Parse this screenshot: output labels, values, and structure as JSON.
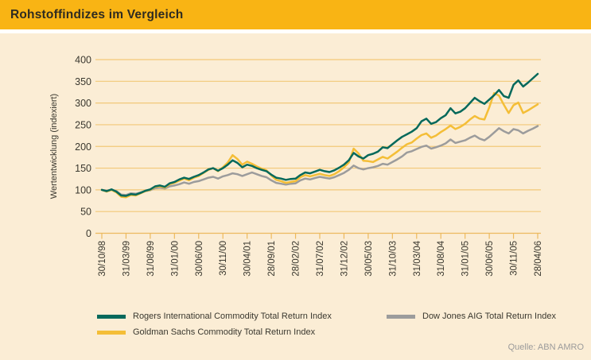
{
  "header": {
    "title": "Rohstoffindizes im Vergleich"
  },
  "source": {
    "label": "Quelle: ABN AMRO"
  },
  "colors": {
    "header_bar": "#f9b414",
    "background": "#fbedd5",
    "gridline": "#f2c878",
    "axis": "#ecb95e",
    "rogers": "#05695b",
    "goldman": "#f4be37",
    "dowjones": "#9c9c9c"
  },
  "chart_data": {
    "type": "line",
    "title": "Rohstoffindizes im Vergleich",
    "xlabel": "",
    "ylabel": "Wertentwicklung (indexiert)",
    "ylim": [
      0,
      400
    ],
    "yticks": [
      0,
      50,
      100,
      150,
      200,
      250,
      300,
      350,
      400
    ],
    "grid": "horizontal",
    "legend_position": "bottom",
    "n_points": 91,
    "x_frequency": "monthly",
    "x_tick_step": 5,
    "x_tick_labels": [
      "30/10/98",
      "31/03/99",
      "31/08/99",
      "31/01/00",
      "30/06/00",
      "30/11/00",
      "30/04/01",
      "28/09/01",
      "28/02/02",
      "31/07/02",
      "31/12/02",
      "30/05/03",
      "31/10/03",
      "31/03/04",
      "31/08/04",
      "31/01/05",
      "30/06/05",
      "30/11/05",
      "28/04/06"
    ],
    "series": [
      {
        "name": "Rogers International Commodity Total Return Index",
        "color": "#05695b",
        "values": [
          100,
          97,
          101,
          96,
          87,
          86,
          90,
          89,
          93,
          98,
          101,
          108,
          110,
          107,
          115,
          118,
          124,
          128,
          125,
          130,
          134,
          140,
          147,
          150,
          144,
          150,
          158,
          168,
          162,
          152,
          158,
          155,
          150,
          146,
          143,
          135,
          128,
          126,
          123,
          125,
          126,
          134,
          140,
          138,
          142,
          146,
          143,
          141,
          145,
          151,
          158,
          168,
          185,
          177,
          172,
          180,
          183,
          188,
          198,
          196,
          205,
          214,
          222,
          228,
          234,
          242,
          258,
          264,
          252,
          256,
          265,
          272,
          288,
          276,
          280,
          288,
          300,
          312,
          304,
          298,
          308,
          318,
          330,
          316,
          312,
          342,
          352,
          338,
          347,
          357,
          367
        ]
      },
      {
        "name": "Goldman Sachs Commodity Total Return Index",
        "color": "#f4be37",
        "values": [
          100,
          96,
          100,
          94,
          84,
          83,
          88,
          87,
          92,
          97,
          100,
          107,
          108,
          105,
          113,
          116,
          121,
          126,
          122,
          128,
          132,
          139,
          146,
          150,
          143,
          152,
          163,
          180,
          171,
          158,
          165,
          160,
          154,
          149,
          145,
          133,
          123,
          120,
          116,
          118,
          120,
          129,
          134,
          131,
          134,
          137,
          134,
          132,
          136,
          143,
          152,
          163,
          195,
          184,
          167,
          166,
          164,
          170,
          176,
          172,
          180,
          188,
          197,
          205,
          209,
          218,
          226,
          230,
          220,
          225,
          233,
          240,
          248,
          240,
          245,
          252,
          262,
          270,
          264,
          262,
          290,
          323,
          317,
          296,
          277,
          295,
          301,
          277,
          283,
          290,
          297
        ]
      },
      {
        "name": "Dow Jones AIG Total Return Index",
        "color": "#9c9c9c",
        "values": [
          100,
          98,
          100,
          97,
          89,
          88,
          92,
          91,
          94,
          97,
          99,
          104,
          105,
          103,
          108,
          110,
          113,
          117,
          114,
          118,
          120,
          124,
          128,
          130,
          126,
          131,
          134,
          138,
          136,
          132,
          136,
          140,
          136,
          132,
          129,
          122,
          116,
          114,
          112,
          114,
          115,
          122,
          126,
          124,
          127,
          130,
          128,
          126,
          129,
          134,
          139,
          146,
          156,
          150,
          147,
          150,
          152,
          155,
          160,
          158,
          164,
          170,
          177,
          186,
          189,
          194,
          199,
          202,
          195,
          198,
          202,
          207,
          216,
          208,
          211,
          214,
          220,
          225,
          218,
          214,
          222,
          232,
          242,
          235,
          230,
          240,
          237,
          230,
          236,
          241,
          247
        ]
      }
    ]
  }
}
